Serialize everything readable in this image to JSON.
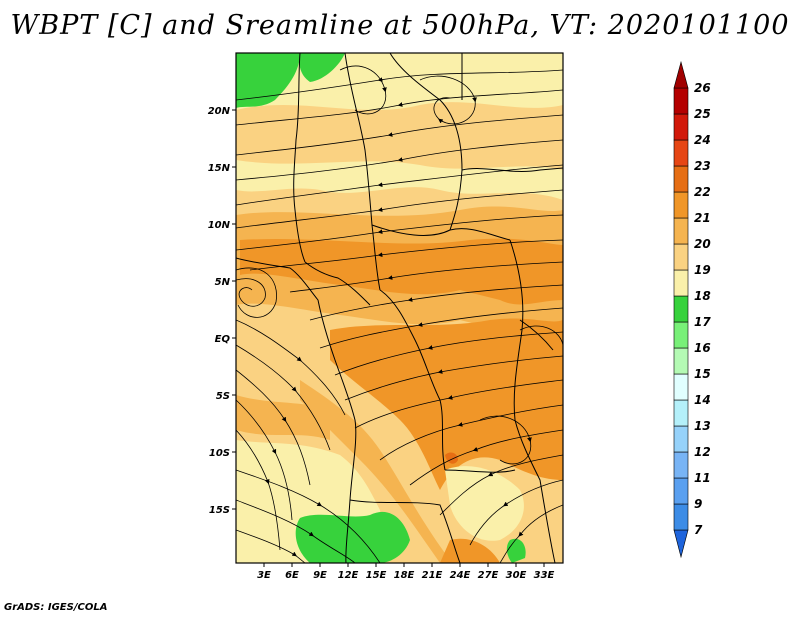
{
  "title": "WBPT [C] and Sreamline at 500hPa, VT: 2020101100",
  "footer": "GrADS: IGES/COLA",
  "map": {
    "lon_labels": [
      "3E",
      "6E",
      "9E",
      "12E",
      "15E",
      "18E",
      "21E",
      "24E",
      "27E",
      "30E",
      "33E"
    ],
    "lat_labels": [
      "20N",
      "15N",
      "10N",
      "5N",
      "EQ",
      "5S",
      "10S",
      "15S"
    ]
  },
  "colorbar": {
    "levels": [
      "7",
      "9",
      "11",
      "12",
      "13",
      "14",
      "15",
      "16",
      "17",
      "18",
      "19",
      "20",
      "21",
      "22",
      "23",
      "24",
      "25",
      "26"
    ],
    "colors": [
      "#1e64dc",
      "#3c8ce6",
      "#5aa0f0",
      "#78b4f5",
      "#96d2fa",
      "#b4f0fa",
      "#e1ffff",
      "#b4fab4",
      "#78f078",
      "#37d23c",
      "#faf0aa",
      "#fad282",
      "#f5b450",
      "#f09628",
      "#e66e14",
      "#e64614",
      "#d2190a",
      "#b40000",
      "#a00000"
    ]
  },
  "colors": {
    "land_base": "#fad282",
    "warm": "#f5b450",
    "hot": "#f09628",
    "pale": "#faf0aa",
    "green": "#37d23c"
  }
}
